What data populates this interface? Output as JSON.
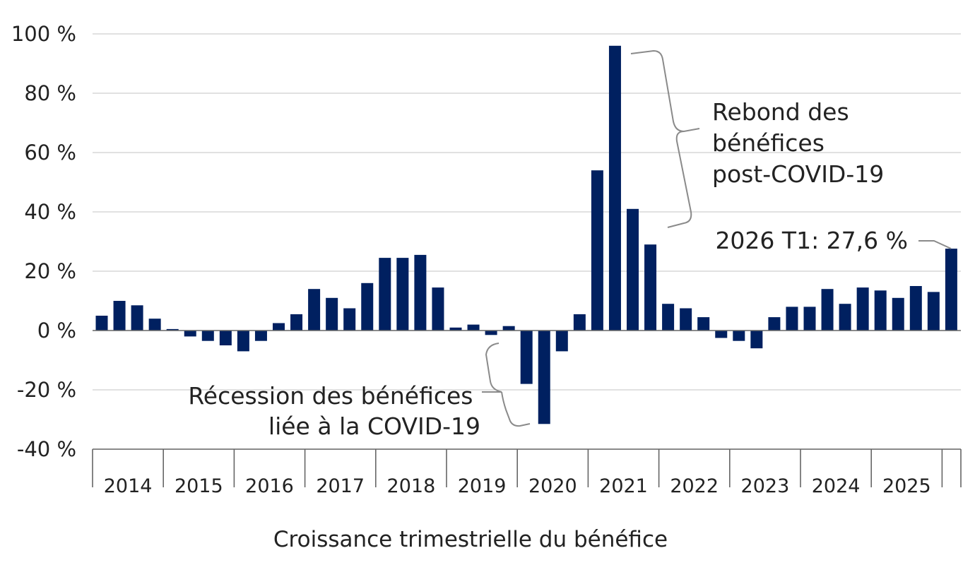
{
  "chart_data": {
    "type": "bar",
    "xlabel": "Croissance trimestrielle du bénéfice",
    "ylabel": "",
    "title": "",
    "ylim": [
      -40,
      100
    ],
    "yticks": [
      100,
      80,
      60,
      40,
      20,
      0,
      -20,
      -40
    ],
    "ytick_labels": [
      "100 %",
      "80 %",
      "60 %",
      "40 %",
      "20 %",
      "0 %",
      "-20 %",
      "-40 %"
    ],
    "years": [
      "2014",
      "2015",
      "2016",
      "2017",
      "2018",
      "2019",
      "2020",
      "2021",
      "2022",
      "2023",
      "2024",
      "2025"
    ],
    "categories": [
      "2014 T1",
      "2014 T2",
      "2014 T3",
      "2014 T4",
      "2015 T1",
      "2015 T2",
      "2015 T3",
      "2015 T4",
      "2016 T1",
      "2016 T2",
      "2016 T3",
      "2016 T4",
      "2017 T1",
      "2017 T2",
      "2017 T3",
      "2017 T4",
      "2018 T1",
      "2018 T2",
      "2018 T3",
      "2018 T4",
      "2019 T1",
      "2019 T2",
      "2019 T3",
      "2019 T4",
      "2020 T1",
      "2020 T2",
      "2020 T3",
      "2020 T4",
      "2021 T1",
      "2021 T2",
      "2021 T3",
      "2021 T4",
      "2022 T1",
      "2022 T2",
      "2022 T3",
      "2022 T4",
      "2023 T1",
      "2023 T2",
      "2023 T3",
      "2023 T4",
      "2024 T1",
      "2024 T2",
      "2024 T3",
      "2024 T4",
      "2025 T1",
      "2025 T2",
      "2025 T3",
      "2025 T4",
      "2026 T1"
    ],
    "values": [
      5,
      10,
      8.5,
      4,
      0.5,
      -2,
      -3.5,
      -5,
      -7,
      -3.5,
      2.5,
      5.5,
      14,
      11,
      7.5,
      16,
      24.5,
      24.5,
      25.5,
      14.5,
      1,
      2,
      -1.5,
      1.5,
      -18,
      -31.5,
      -7,
      5.5,
      54,
      96,
      41,
      29,
      9,
      7.5,
      4.5,
      -2.5,
      -3.5,
      -6,
      4.5,
      8,
      8,
      14,
      9,
      14.5,
      13.5,
      11,
      15,
      13,
      27.6
    ],
    "color": "#002060",
    "annotations": {
      "rebound": [
        "Rebond des",
        "bénéfices",
        "post-COVID-19"
      ],
      "recession": [
        "Récession des bénéfices",
        "liée à la COVID-19"
      ],
      "last": "2026 T1: 27,6 %"
    },
    "grid": true,
    "legend": "none"
  }
}
